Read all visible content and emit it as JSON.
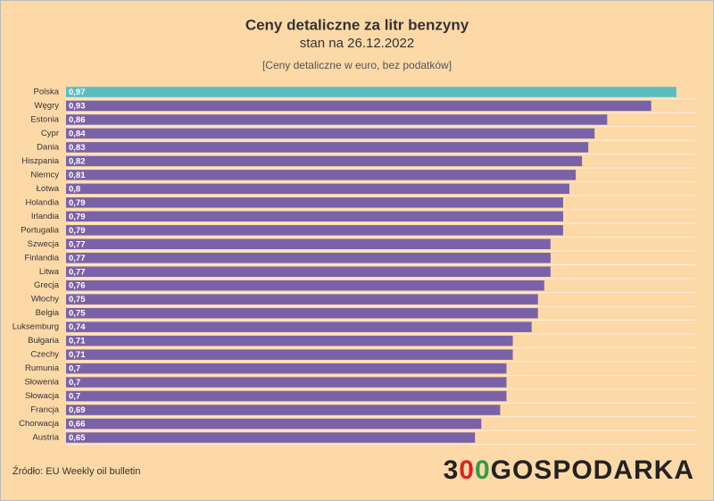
{
  "chart_data": {
    "type": "bar",
    "orientation": "horizontal",
    "title": "Ceny detaliczne za litr benzyny",
    "subtitle": "stan na 26.12.2022",
    "note": "[Ceny detaliczne w euro, bez podatków]",
    "categories": [
      "Polska",
      "Węgry",
      "Estonia",
      "Cypr",
      "Dania",
      "Hiszpania",
      "Niemcy",
      "Łotwa",
      "Holandia",
      "Irlandia",
      "Portugalia",
      "Szwecja",
      "Finlandia",
      "Litwa",
      "Grecja",
      "Włochy",
      "Belgia",
      "Luksemburg",
      "Bułgaria",
      "Czechy",
      "Rumunia",
      "Słowenia",
      "Słowacja",
      "Francja",
      "Chorwacja",
      "Austria"
    ],
    "values": [
      0.97,
      0.93,
      0.86,
      0.84,
      0.83,
      0.82,
      0.81,
      0.8,
      0.79,
      0.79,
      0.79,
      0.77,
      0.77,
      0.77,
      0.76,
      0.75,
      0.75,
      0.74,
      0.71,
      0.71,
      0.7,
      0.7,
      0.7,
      0.69,
      0.66,
      0.65
    ],
    "value_labels": [
      "0,97",
      "0,93",
      "0,86",
      "0,84",
      "0,83",
      "0,82",
      "0,81",
      "0,8",
      "0,79",
      "0,79",
      "0,79",
      "0,77",
      "0,77",
      "0,77",
      "0,76",
      "0,75",
      "0,75",
      "0,74",
      "0,71",
      "0,71",
      "0,7",
      "0,7",
      "0,7",
      "0,69",
      "0,66",
      "0,65"
    ],
    "colors": [
      "#5bbcc0",
      "#7a62a8",
      "#7a62a8",
      "#7a62a8",
      "#7a62a8",
      "#7a62a8",
      "#7a62a8",
      "#7a62a8",
      "#7a62a8",
      "#7a62a8",
      "#7a62a8",
      "#7a62a8",
      "#7a62a8",
      "#7a62a8",
      "#7a62a8",
      "#7a62a8",
      "#7a62a8",
      "#7a62a8",
      "#7a62a8",
      "#7a62a8",
      "#7a62a8",
      "#7a62a8",
      "#7a62a8",
      "#7a62a8",
      "#7a62a8",
      "#7a62a8"
    ],
    "source": "Źródło: EU Weekly oil bulletin",
    "logo": [
      {
        "text": "3",
        "color": "#222222"
      },
      {
        "text": "0",
        "color": "#d9232a"
      },
      {
        "text": "0",
        "color": "#2e9e48"
      },
      {
        "text": "GOSPODARKA",
        "color": "#222222"
      }
    ]
  }
}
